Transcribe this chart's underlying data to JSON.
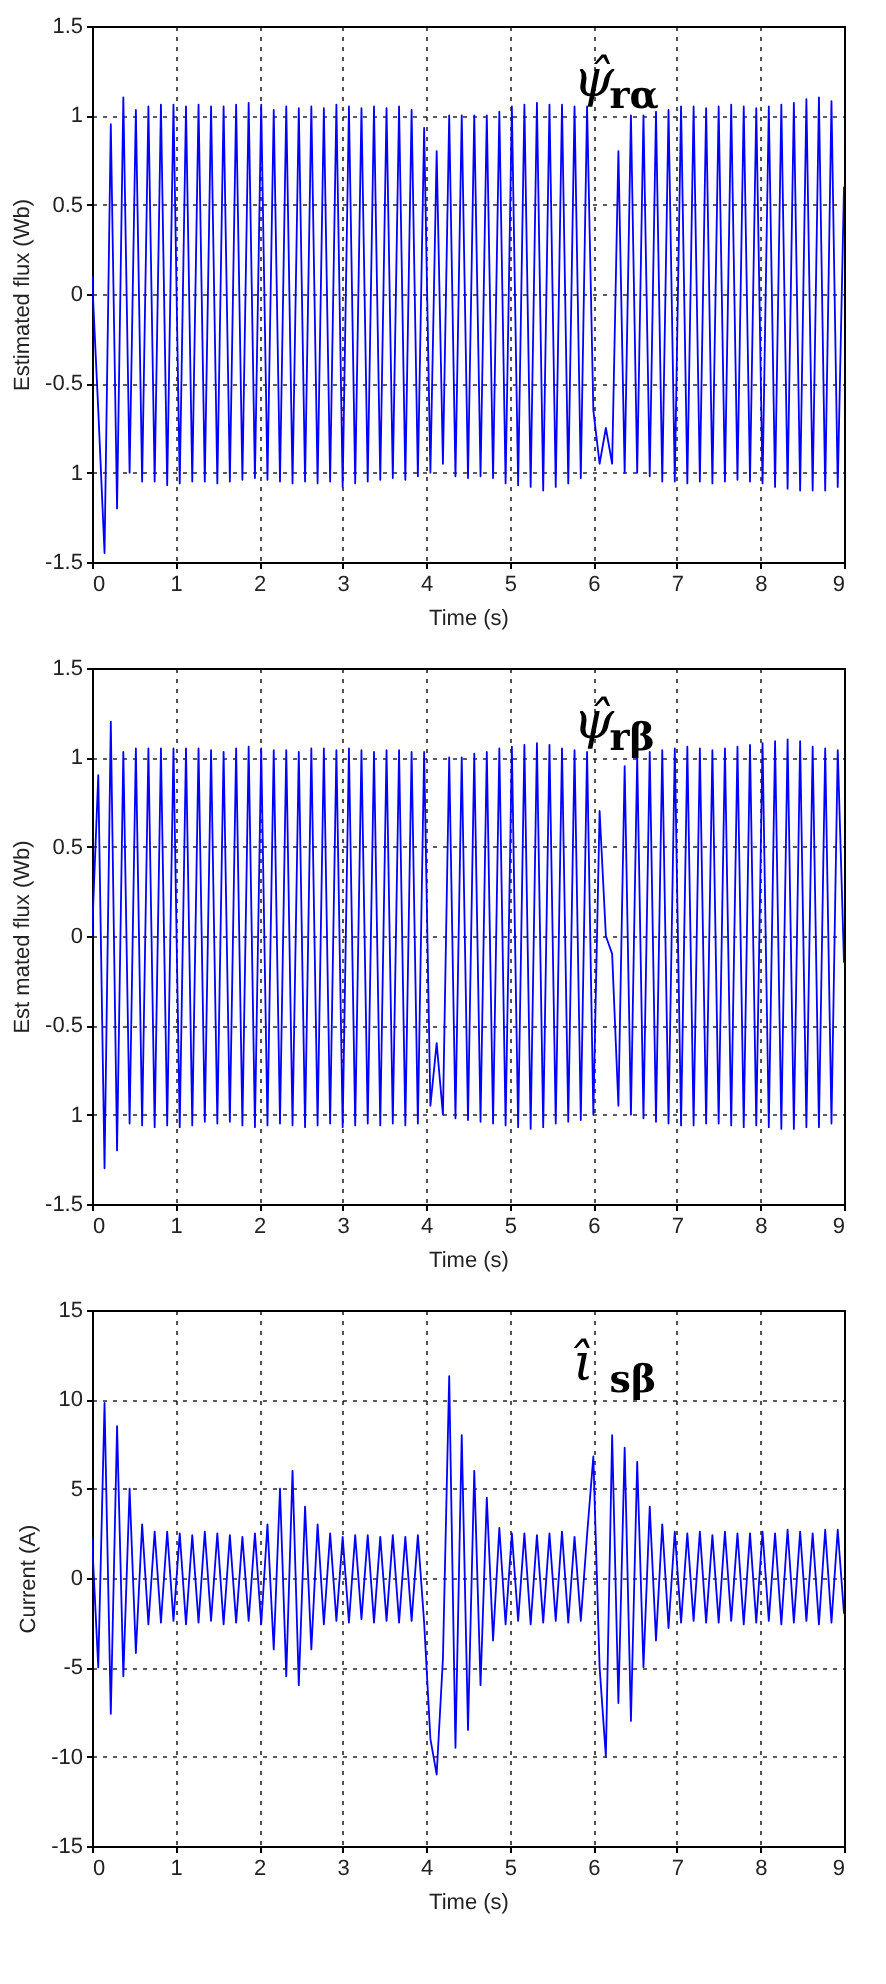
{
  "chart_data": [
    {
      "type": "line",
      "xlabel": "Time   (s)",
      "ylabel": "Estimated flux (Wb)",
      "annotations": [
        "ψ̂$_{rα}$"
      ],
      "grid": true,
      "line_style": "solid",
      "xlim": [
        0,
        9
      ],
      "ylim": [
        -1.5,
        1.5
      ],
      "xticks": [
        0,
        1,
        2,
        3,
        4,
        5,
        6,
        7,
        8,
        9
      ],
      "yticks": [
        -1.5,
        {
          "value": -1,
          "label": "1"
        },
        -0.5,
        0,
        0.5,
        1,
        1.5
      ],
      "x": [
        0,
        0.075,
        0.15,
        0.225,
        0.3,
        0.375,
        0.45,
        0.525,
        0.6,
        0.675,
        0.75,
        0.825,
        0.9,
        0.975,
        1.05,
        1.125,
        1.2,
        1.275,
        1.35,
        1.425,
        1.5,
        1.575,
        1.65,
        1.725,
        1.8,
        1.875,
        1.95,
        2.025,
        2.1,
        2.175,
        2.25,
        2.325,
        2.4,
        2.475,
        2.55,
        2.625,
        2.7,
        2.775,
        2.85,
        2.925,
        3.0,
        3.075,
        3.15,
        3.225,
        3.3,
        3.375,
        3.45,
        3.525,
        3.6,
        3.675,
        3.75,
        3.825,
        3.9,
        3.975,
        4.05,
        4.125,
        4.2,
        4.275,
        4.35,
        4.425,
        4.5,
        4.575,
        4.65,
        4.725,
        4.8,
        4.875,
        4.95,
        5.025,
        5.1,
        5.175,
        5.25,
        5.325,
        5.4,
        5.475,
        5.55,
        5.625,
        5.7,
        5.775,
        5.85,
        5.925,
        6.0,
        6.075,
        6.15,
        6.225,
        6.3,
        6.375,
        6.45,
        6.525,
        6.6,
        6.675,
        6.75,
        6.825,
        6.9,
        6.975,
        7.05,
        7.125,
        7.2,
        7.275,
        7.35,
        7.425,
        7.5,
        7.575,
        7.65,
        7.725,
        7.8,
        7.875,
        7.95,
        8.025,
        8.1,
        8.175,
        8.25,
        8.325,
        8.4,
        8.475,
        8.55,
        8.625,
        8.7,
        8.775,
        8.85,
        8.925,
        9.0
      ],
      "series": [
        {
          "color": "#0000ff",
          "values": [
            0.1,
            -0.65,
            -1.45,
            0.95,
            -1.2,
            1.1,
            -1.0,
            1.03,
            -1.05,
            1.05,
            -1.05,
            1.06,
            -1.07,
            1.06,
            -1.06,
            1.05,
            -1.05,
            1.06,
            -1.05,
            1.05,
            -1.06,
            1.05,
            -1.05,
            1.06,
            -1.04,
            1.07,
            -1.03,
            1.06,
            -1.04,
            1.03,
            -1.05,
            1.05,
            -1.06,
            1.04,
            -1.05,
            1.05,
            -1.06,
            1.04,
            -1.05,
            1.06,
            -1.08,
            1.05,
            -1.06,
            1.04,
            -1.05,
            1.05,
            -1.04,
            1.04,
            -1.03,
            1.05,
            -1.04,
            1.03,
            -1.02,
            0.93,
            -1.0,
            0.8,
            -0.95,
            1.0,
            -1.02,
            1.0,
            -1.03,
            1.0,
            -1.02,
            1.0,
            -1.03,
            1.02,
            -1.06,
            1.05,
            -1.07,
            1.06,
            -1.08,
            1.07,
            -1.1,
            1.06,
            -1.08,
            1.06,
            -1.06,
            1.05,
            -1.03,
            1.05,
            -0.65,
            -0.95,
            -0.75,
            -0.95,
            0.8,
            -1.0,
            1.0,
            -1.0,
            1.0,
            -1.02,
            1.02,
            -1.05,
            1.03,
            -1.05,
            1.05,
            -1.06,
            1.05,
            -1.05,
            1.04,
            -1.06,
            1.05,
            -1.05,
            1.06,
            -1.04,
            1.05,
            -1.05,
            1.04,
            -1.06,
            1.05,
            -1.08,
            1.06,
            -1.09,
            1.07,
            -1.1,
            1.09,
            -1.1,
            1.1,
            -1.1,
            1.08,
            -1.08,
            0.6
          ]
        }
      ]
    },
    {
      "type": "line",
      "xlabel": "Time (s)",
      "ylabel": "Est mated flux  (Wb)",
      "annotations": [
        "ψ̂$_{rβ}$"
      ],
      "grid": true,
      "line_style": "solid",
      "xlim": [
        0,
        9
      ],
      "ylim": [
        -1.5,
        1.5
      ],
      "xticks": [
        0,
        1,
        2,
        3,
        4,
        5,
        6,
        7,
        8,
        9
      ],
      "yticks": [
        -1.5,
        {
          "value": -1,
          "label": "1"
        },
        -0.5,
        0,
        0.5,
        1,
        1.5
      ],
      "x": [
        0,
        0.075,
        0.15,
        0.225,
        0.3,
        0.375,
        0.45,
        0.525,
        0.6,
        0.675,
        0.75,
        0.825,
        0.9,
        0.975,
        1.05,
        1.125,
        1.2,
        1.275,
        1.35,
        1.425,
        1.5,
        1.575,
        1.65,
        1.725,
        1.8,
        1.875,
        1.95,
        2.025,
        2.1,
        2.175,
        2.25,
        2.325,
        2.4,
        2.475,
        2.55,
        2.625,
        2.7,
        2.775,
        2.85,
        2.925,
        3.0,
        3.075,
        3.15,
        3.225,
        3.3,
        3.375,
        3.45,
        3.525,
        3.6,
        3.675,
        3.75,
        3.825,
        3.9,
        3.975,
        4.05,
        4.125,
        4.2,
        4.275,
        4.35,
        4.425,
        4.5,
        4.575,
        4.65,
        4.725,
        4.8,
        4.875,
        4.95,
        5.025,
        5.1,
        5.175,
        5.25,
        5.325,
        5.4,
        5.475,
        5.55,
        5.625,
        5.7,
        5.775,
        5.85,
        5.925,
        6.0,
        6.075,
        6.15,
        6.225,
        6.3,
        6.375,
        6.45,
        6.525,
        6.6,
        6.675,
        6.75,
        6.825,
        6.9,
        6.975,
        7.05,
        7.125,
        7.2,
        7.275,
        7.35,
        7.425,
        7.5,
        7.575,
        7.65,
        7.725,
        7.8,
        7.875,
        7.95,
        8.025,
        8.1,
        8.175,
        8.25,
        8.325,
        8.4,
        8.475,
        8.55,
        8.625,
        8.7,
        8.775,
        8.85,
        8.925,
        9.0
      ],
      "series": [
        {
          "color": "#0000ff",
          "values": [
            0.0,
            0.9,
            -1.3,
            1.2,
            -1.2,
            1.03,
            -1.05,
            1.05,
            -1.06,
            1.05,
            -1.07,
            1.05,
            -1.06,
            1.05,
            -1.07,
            1.05,
            -1.06,
            1.05,
            -1.04,
            1.04,
            -1.05,
            1.03,
            -1.04,
            1.05,
            -1.06,
            1.06,
            -1.07,
            1.05,
            -1.06,
            1.04,
            -1.05,
            1.04,
            -1.06,
            1.03,
            -1.07,
            1.05,
            -1.06,
            1.05,
            -1.05,
            1.04,
            -1.07,
            1.05,
            -1.06,
            1.04,
            -1.05,
            1.03,
            -1.06,
            1.04,
            -1.05,
            1.04,
            -1.06,
            1.03,
            -1.05,
            1.03,
            -0.95,
            -0.6,
            -1.0,
            1.0,
            -1.02,
            1.0,
            -1.03,
            1.02,
            -1.04,
            1.03,
            -1.05,
            1.05,
            -1.06,
            1.06,
            -1.07,
            1.07,
            -1.08,
            1.08,
            -1.07,
            1.07,
            -1.05,
            1.05,
            -1.04,
            1.04,
            -1.03,
            1.03,
            -1.0,
            0.7,
            0.0,
            -0.1,
            -0.95,
            0.95,
            -1.0,
            1.0,
            -1.02,
            1.03,
            -1.04,
            1.04,
            -1.05,
            1.05,
            -1.06,
            1.06,
            -1.06,
            1.05,
            -1.05,
            1.04,
            -1.05,
            1.05,
            -1.06,
            1.06,
            -1.07,
            1.07,
            -1.06,
            1.08,
            -1.07,
            1.09,
            -1.08,
            1.1,
            -1.08,
            1.09,
            -1.07,
            1.06,
            -1.07,
            1.05,
            -1.05,
            1.04,
            -0.15
          ]
        }
      ]
    },
    {
      "type": "line",
      "xlabel": "Time (s)",
      "ylabel": "Current   (A)",
      "annotations": [
        "ι̂$_{sβ}$"
      ],
      "grid": true,
      "line_style": "solid",
      "xlim": [
        0,
        9
      ],
      "ylim": [
        -15,
        15
      ],
      "xticks": [
        0,
        1,
        2,
        3,
        4,
        5,
        6,
        7,
        8,
        9
      ],
      "yticks": [
        -15,
        -10,
        -5,
        0,
        5,
        10,
        15
      ],
      "x": [
        0,
        0.075,
        0.15,
        0.225,
        0.3,
        0.375,
        0.45,
        0.525,
        0.6,
        0.675,
        0.75,
        0.825,
        0.9,
        0.975,
        1.05,
        1.125,
        1.2,
        1.275,
        1.35,
        1.425,
        1.5,
        1.575,
        1.65,
        1.725,
        1.8,
        1.875,
        1.95,
        2.025,
        2.1,
        2.175,
        2.25,
        2.325,
        2.4,
        2.475,
        2.55,
        2.625,
        2.7,
        2.775,
        2.85,
        2.925,
        3.0,
        3.075,
        3.15,
        3.225,
        3.3,
        3.375,
        3.45,
        3.525,
        3.6,
        3.675,
        3.75,
        3.825,
        3.9,
        3.975,
        4.05,
        4.125,
        4.2,
        4.275,
        4.35,
        4.425,
        4.5,
        4.575,
        4.65,
        4.725,
        4.8,
        4.875,
        4.95,
        5.025,
        5.1,
        5.175,
        5.25,
        5.325,
        5.4,
        5.475,
        5.55,
        5.625,
        5.7,
        5.775,
        5.85,
        5.925,
        6.0,
        6.075,
        6.15,
        6.225,
        6.3,
        6.375,
        6.45,
        6.525,
        6.6,
        6.675,
        6.75,
        6.825,
        6.9,
        6.975,
        7.05,
        7.125,
        7.2,
        7.275,
        7.35,
        7.425,
        7.5,
        7.575,
        7.65,
        7.725,
        7.8,
        7.875,
        7.95,
        8.025,
        8.1,
        8.175,
        8.25,
        8.325,
        8.4,
        8.475,
        8.55,
        8.625,
        8.7,
        8.775,
        8.85,
        8.925,
        9.0
      ],
      "series": [
        {
          "color": "#0000ff",
          "values": [
            2.2,
            -5.0,
            9.8,
            -7.6,
            8.5,
            -5.5,
            5.0,
            -4.2,
            3.0,
            -2.6,
            2.6,
            -2.5,
            2.6,
            -2.4,
            2.5,
            -2.6,
            2.4,
            -2.5,
            2.6,
            -2.4,
            2.5,
            -2.6,
            2.4,
            -2.5,
            2.3,
            -2.4,
            2.5,
            -2.6,
            3.0,
            -4.0,
            5.0,
            -5.5,
            6.0,
            -6.0,
            4.0,
            -4.0,
            3.0,
            -2.6,
            2.5,
            -2.4,
            2.3,
            -2.5,
            2.4,
            -2.3,
            2.4,
            -2.5,
            2.3,
            -2.4,
            2.4,
            -2.5,
            2.3,
            -2.4,
            2.4,
            -2.5,
            -9.0,
            -11.0,
            -4.5,
            11.3,
            -9.5,
            8.0,
            -8.5,
            6.0,
            -6.0,
            4.5,
            -3.5,
            2.8,
            -2.6,
            2.5,
            -2.4,
            2.5,
            -2.6,
            2.4,
            -2.5,
            2.5,
            -2.4,
            2.6,
            -2.5,
            2.3,
            -2.4,
            2.4,
            6.8,
            -5.0,
            -10.0,
            8.0,
            -7.0,
            7.3,
            -8.0,
            6.5,
            -5.0,
            4.0,
            -3.5,
            3.0,
            -2.8,
            2.6,
            -2.5,
            2.5,
            -2.4,
            2.6,
            -2.5,
            2.4,
            -2.5,
            2.6,
            -2.4,
            2.5,
            -2.6,
            2.5,
            -2.5,
            2.6,
            -2.4,
            2.5,
            -2.6,
            2.7,
            -2.5,
            2.6,
            -2.4,
            2.5,
            -2.6,
            2.7,
            -2.5,
            2.7,
            -2.0
          ]
        }
      ]
    }
  ]
}
